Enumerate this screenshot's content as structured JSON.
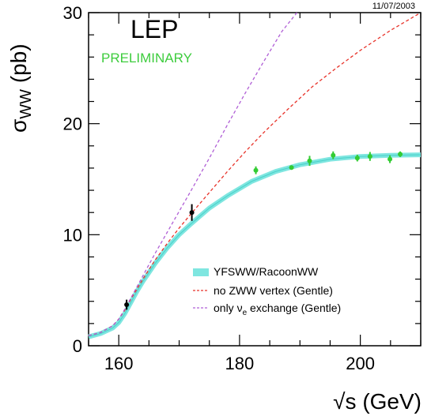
{
  "date_stamp": "11/07/2003",
  "experiment_label": "LEP",
  "status_label": "PRELIMINARY",
  "axis_labels": {
    "y_sigma": "σ",
    "y_sub": "WW",
    "y_unit": " (pb)",
    "x": "√s (GeV)"
  },
  "colors": {
    "band": "#7fe6e0",
    "band_line": "#4fd3cc",
    "no_zww": "#e8332a",
    "only_nu": "#b05fd6",
    "preliminary": "#3dcc3d",
    "points_green": "#33cc33",
    "points_black": "#000000"
  },
  "legend": [
    {
      "id": "band",
      "label": "YFSWW/RacoonWW"
    },
    {
      "id": "no_zww",
      "label": "no ZWW vertex (Gentle)"
    },
    {
      "id": "only_nu",
      "label": "only νe exchange (Gentle)",
      "text": "only ",
      "nu": "ν",
      "sub": "e",
      "rest": " exchange (Gentle)"
    }
  ],
  "chart_data": {
    "type": "line",
    "xlim": [
      155,
      210
    ],
    "ylim": [
      0,
      30
    ],
    "x_ticks": [
      160,
      180,
      200
    ],
    "y_ticks": [
      0,
      10,
      20,
      30
    ],
    "series": [
      {
        "name": "YFSWW/RacoonWW",
        "style": "band",
        "x": [
          155,
          157,
          159,
          160,
          161,
          162,
          163,
          164,
          165,
          166,
          168,
          170,
          172,
          175,
          178,
          182,
          186,
          190,
          195,
          200,
          205,
          210
        ],
        "y": [
          0.8,
          1.1,
          1.6,
          2.1,
          2.9,
          3.9,
          4.9,
          5.8,
          6.6,
          7.4,
          8.8,
          10.0,
          11.0,
          12.4,
          13.5,
          14.8,
          15.7,
          16.3,
          16.8,
          17.05,
          17.15,
          17.2
        ]
      },
      {
        "name": "no ZWW vertex (Gentle)",
        "style": "dashed",
        "x": [
          155,
          157,
          159,
          160,
          161,
          162,
          163,
          164,
          166,
          168,
          170,
          172,
          175,
          178,
          181,
          184,
          188,
          192,
          196,
          200,
          205,
          210
        ],
        "y": [
          0.9,
          1.2,
          1.8,
          2.4,
          3.2,
          4.2,
          5.1,
          6.0,
          7.7,
          9.2,
          10.6,
          11.9,
          13.8,
          15.7,
          17.5,
          19.2,
          21.3,
          23.3,
          25.0,
          26.6,
          28.4,
          30.0
        ]
      },
      {
        "name": "only νe exchange (Gentle)",
        "style": "dashed",
        "x": [
          155,
          157,
          159,
          160,
          161,
          162,
          163,
          164,
          166,
          168,
          170,
          172,
          175,
          178,
          181,
          184,
          187,
          189.5
        ],
        "y": [
          0.9,
          1.2,
          1.8,
          2.4,
          3.3,
          4.3,
          5.3,
          6.3,
          8.3,
          10.2,
          12.1,
          14.0,
          16.9,
          19.9,
          22.8,
          25.6,
          28.3,
          30.0
        ]
      }
    ],
    "points": [
      {
        "x": 161.3,
        "y": 3.7,
        "err": 0.45,
        "color": "black"
      },
      {
        "x": 172.1,
        "y": 12.0,
        "err": 0.75,
        "color": "black"
      },
      {
        "x": 182.7,
        "y": 15.8,
        "err": 0.35,
        "color": "green"
      },
      {
        "x": 188.6,
        "y": 16.05,
        "err": 0.2,
        "color": "green"
      },
      {
        "x": 191.6,
        "y": 16.65,
        "err": 0.45,
        "color": "green"
      },
      {
        "x": 195.5,
        "y": 17.15,
        "err": 0.35,
        "color": "green"
      },
      {
        "x": 199.5,
        "y": 16.9,
        "err": 0.3,
        "color": "green"
      },
      {
        "x": 201.6,
        "y": 17.05,
        "err": 0.4,
        "color": "green"
      },
      {
        "x": 204.9,
        "y": 16.8,
        "err": 0.35,
        "color": "green"
      },
      {
        "x": 206.6,
        "y": 17.25,
        "err": 0.25,
        "color": "green"
      }
    ]
  }
}
